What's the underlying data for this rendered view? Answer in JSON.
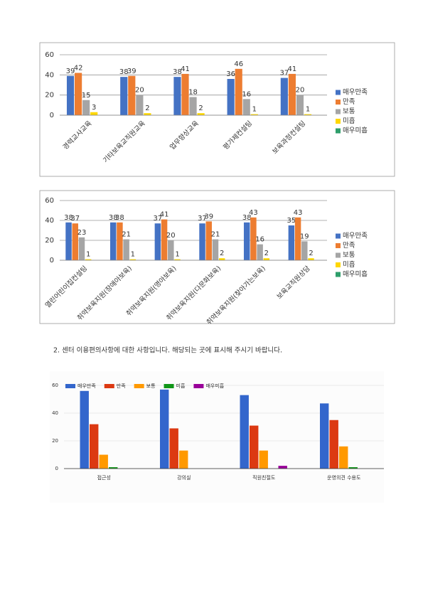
{
  "heading": "2. 센터 이용편의사항에 대한 사항입니다. 해당되는 곳에 표시해 주시기 바랍니다.",
  "chart_data": [
    {
      "type": "bar",
      "categories": [
        "경력교사교육",
        "기타보육교직원교육",
        "업무향상교육",
        "평가제컨설팅",
        "보육과정컨설팅"
      ],
      "series": [
        {
          "name": "매우만족",
          "color": "#4472c4",
          "values": [
            39,
            38,
            38,
            36,
            37
          ]
        },
        {
          "name": "만족",
          "color": "#ed7d31",
          "values": [
            42,
            39,
            41,
            46,
            41
          ]
        },
        {
          "name": "보통",
          "color": "#a5a5a5",
          "values": [
            15,
            20,
            18,
            16,
            20
          ]
        },
        {
          "name": "미흡",
          "color": "#ffd700",
          "values": [
            3,
            2,
            2,
            1,
            1
          ]
        },
        {
          "name": "매우미흡",
          "color": "#2e9e6b",
          "values": [
            null,
            null,
            null,
            null,
            null
          ]
        }
      ],
      "ylim": [
        0,
        60
      ],
      "yticks": [
        0,
        20,
        40,
        60
      ],
      "grid": true,
      "legend": "right",
      "data_labels": true
    },
    {
      "type": "bar",
      "categories": [
        "열린어린이집컨설팅",
        "취약보육지원(장애아보육)",
        "취약보육지원(영아보육)",
        "취약보육지원(다문화보육)",
        "취약보육지원(찾아가는보육)",
        "보육교직원상담"
      ],
      "series": [
        {
          "name": "매우만족",
          "color": "#4472c4",
          "values": [
            38,
            38,
            37,
            37,
            38,
            35
          ]
        },
        {
          "name": "만족",
          "color": "#ed7d31",
          "values": [
            37,
            38,
            41,
            39,
            43,
            43
          ]
        },
        {
          "name": "보통",
          "color": "#a5a5a5",
          "values": [
            23,
            21,
            20,
            21,
            16,
            19
          ]
        },
        {
          "name": "미흡",
          "color": "#ffd700",
          "values": [
            1,
            1,
            1,
            2,
            2,
            2
          ]
        },
        {
          "name": "매우미흡",
          "color": "#2e9e6b",
          "values": [
            null,
            null,
            null,
            null,
            null,
            null
          ]
        }
      ],
      "ylim": [
        0,
        60
      ],
      "yticks": [
        0,
        20,
        40,
        60
      ],
      "grid": true,
      "legend": "right",
      "data_labels": true
    },
    {
      "type": "bar",
      "categories": [
        "접근성",
        "강의실",
        "직원친절도",
        "운영의견 수용도"
      ],
      "series": [
        {
          "name": "매우만족",
          "color": "#3366cc",
          "values": [
            56,
            57,
            53,
            47
          ]
        },
        {
          "name": "만족",
          "color": "#dc3912",
          "values": [
            32,
            29,
            31,
            35
          ]
        },
        {
          "name": "보통",
          "color": "#ff9900",
          "values": [
            10,
            13,
            13,
            16
          ]
        },
        {
          "name": "미흡",
          "color": "#109618",
          "values": [
            1,
            null,
            null,
            1
          ]
        },
        {
          "name": "매우미흡",
          "color": "#990099",
          "values": [
            null,
            null,
            2,
            null
          ]
        }
      ],
      "ylim": [
        0,
        60
      ],
      "yticks": [
        0,
        20,
        40,
        60
      ],
      "grid": true,
      "legend": "top",
      "data_labels": false
    }
  ]
}
